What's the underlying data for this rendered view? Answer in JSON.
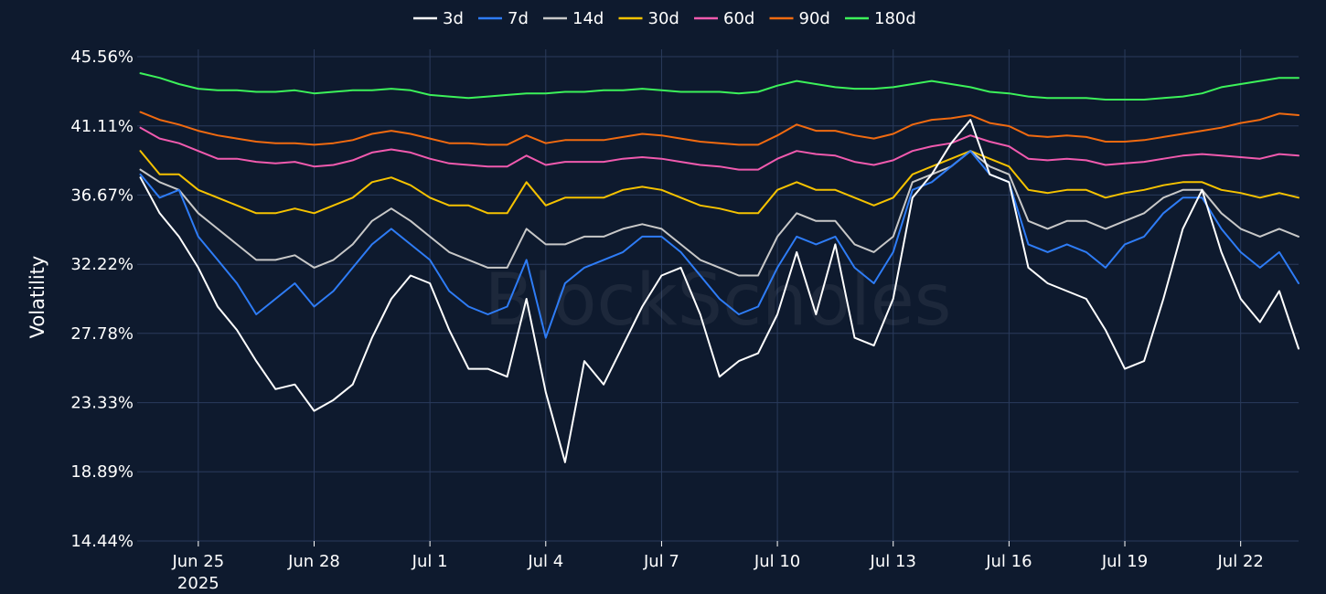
{
  "chart_data": {
    "type": "line",
    "watermark": "BlockScholes",
    "ylabel": "Volatility",
    "xlabel": "",
    "title": "",
    "grid": true,
    "legend_position": "top-center",
    "ylim": [
      14.44,
      45.56
    ],
    "y_ticks": [
      "45.56%",
      "41.11%",
      "36.67%",
      "32.22%",
      "27.78%",
      "23.33%",
      "18.89%",
      "14.44%"
    ],
    "y_tick_values": [
      45.56,
      41.11,
      36.67,
      32.22,
      27.78,
      23.33,
      18.89,
      14.44
    ],
    "x_ticks": [
      {
        "label": "Jun 25",
        "sublabel": "2025",
        "date": "2025-06-25"
      },
      {
        "label": "Jun 28",
        "sublabel": "",
        "date": "2025-06-28"
      },
      {
        "label": "Jul 1",
        "sublabel": "",
        "date": "2025-07-01"
      },
      {
        "label": "Jul 4",
        "sublabel": "",
        "date": "2025-07-04"
      },
      {
        "label": "Jul 7",
        "sublabel": "",
        "date": "2025-07-07"
      },
      {
        "label": "Jul 10",
        "sublabel": "",
        "date": "2025-07-10"
      },
      {
        "label": "Jul 13",
        "sublabel": "",
        "date": "2025-07-13"
      },
      {
        "label": "Jul 16",
        "sublabel": "",
        "date": "2025-07-16"
      },
      {
        "label": "Jul 19",
        "sublabel": "",
        "date": "2025-07-19"
      },
      {
        "label": "Jul 22",
        "sublabel": "",
        "date": "2025-07-22"
      }
    ],
    "xlim": [
      "2025-06-23T10:00",
      "2025-07-23T12:00"
    ],
    "x": [
      "2025-06-23T12:00",
      "2025-06-24T00:00",
      "2025-06-24T12:00",
      "2025-06-25T00:00",
      "2025-06-25T12:00",
      "2025-06-26T00:00",
      "2025-06-26T12:00",
      "2025-06-27T00:00",
      "2025-06-27T12:00",
      "2025-06-28T00:00",
      "2025-06-28T12:00",
      "2025-06-29T00:00",
      "2025-06-29T12:00",
      "2025-06-30T00:00",
      "2025-06-30T12:00",
      "2025-07-01T00:00",
      "2025-07-01T12:00",
      "2025-07-02T00:00",
      "2025-07-02T12:00",
      "2025-07-03T00:00",
      "2025-07-03T12:00",
      "2025-07-04T00:00",
      "2025-07-04T12:00",
      "2025-07-05T00:00",
      "2025-07-05T12:00",
      "2025-07-06T00:00",
      "2025-07-06T12:00",
      "2025-07-07T00:00",
      "2025-07-07T12:00",
      "2025-07-08T00:00",
      "2025-07-08T12:00",
      "2025-07-09T00:00",
      "2025-07-09T12:00",
      "2025-07-10T00:00",
      "2025-07-10T12:00",
      "2025-07-11T00:00",
      "2025-07-11T12:00",
      "2025-07-12T00:00",
      "2025-07-12T12:00",
      "2025-07-13T00:00",
      "2025-07-13T12:00",
      "2025-07-14T00:00",
      "2025-07-14T12:00",
      "2025-07-15T00:00",
      "2025-07-15T12:00",
      "2025-07-16T00:00",
      "2025-07-16T12:00",
      "2025-07-17T00:00",
      "2025-07-17T12:00",
      "2025-07-18T00:00",
      "2025-07-18T12:00",
      "2025-07-19T00:00",
      "2025-07-19T12:00",
      "2025-07-20T00:00",
      "2025-07-20T12:00",
      "2025-07-21T00:00",
      "2025-07-21T12:00",
      "2025-07-22T00:00",
      "2025-07-22T12:00",
      "2025-07-23T00:00",
      "2025-07-23T12:00"
    ],
    "series": [
      {
        "name": "3d",
        "color": "#ffffff",
        "values": [
          37.8,
          35.5,
          34.0,
          32.0,
          29.5,
          28.0,
          26.0,
          24.2,
          24.5,
          22.8,
          23.5,
          24.5,
          27.5,
          30.0,
          31.5,
          31.0,
          28.0,
          25.5,
          25.5,
          25.0,
          30.0,
          24.0,
          19.5,
          26.0,
          24.5,
          27.0,
          29.5,
          31.5,
          32.0,
          29.0,
          25.0,
          26.0,
          26.5,
          29.0,
          33.0,
          29.0,
          33.5,
          27.5,
          27.0,
          30.0,
          36.5,
          38.0,
          40.0,
          41.5,
          38.0,
          37.5,
          32.0,
          31.0,
          30.5,
          30.0,
          28.0,
          25.5,
          26.0,
          30.0,
          34.5,
          37.0,
          33.0,
          30.0,
          28.5,
          30.5,
          26.8
        ]
      },
      {
        "name": "7d",
        "color": "#2e7cf6",
        "values": [
          38.0,
          36.5,
          37.0,
          34.0,
          32.5,
          31.0,
          29.0,
          30.0,
          31.0,
          29.5,
          30.5,
          32.0,
          33.5,
          34.5,
          33.5,
          32.5,
          30.5,
          29.5,
          29.0,
          29.5,
          32.5,
          27.5,
          31.0,
          32.0,
          32.5,
          33.0,
          34.0,
          34.0,
          33.0,
          31.5,
          30.0,
          29.0,
          29.5,
          32.0,
          34.0,
          33.5,
          34.0,
          32.0,
          31.0,
          33.0,
          37.0,
          37.5,
          38.5,
          39.5,
          38.0,
          37.5,
          33.5,
          33.0,
          33.5,
          33.0,
          32.0,
          33.5,
          34.0,
          35.5,
          36.5,
          36.5,
          34.5,
          33.0,
          32.0,
          33.0,
          31.0
        ]
      },
      {
        "name": "14d",
        "color": "#c8c8c8",
        "values": [
          38.3,
          37.5,
          37.0,
          35.5,
          34.5,
          33.5,
          32.5,
          32.5,
          32.8,
          32.0,
          32.5,
          33.5,
          35.0,
          35.8,
          35.0,
          34.0,
          33.0,
          32.5,
          32.0,
          32.0,
          34.5,
          33.5,
          33.5,
          34.0,
          34.0,
          34.5,
          34.8,
          34.5,
          33.5,
          32.5,
          32.0,
          31.5,
          31.5,
          34.0,
          35.5,
          35.0,
          35.0,
          33.5,
          33.0,
          34.0,
          37.5,
          38.0,
          38.5,
          39.5,
          38.5,
          38.0,
          35.0,
          34.5,
          35.0,
          35.0,
          34.5,
          35.0,
          35.5,
          36.5,
          37.0,
          37.0,
          35.5,
          34.5,
          34.0,
          34.5,
          34.0
        ]
      },
      {
        "name": "30d",
        "color": "#f5c200",
        "values": [
          39.5,
          38.0,
          38.0,
          37.0,
          36.5,
          36.0,
          35.5,
          35.5,
          35.8,
          35.5,
          36.0,
          36.5,
          37.5,
          37.8,
          37.3,
          36.5,
          36.0,
          36.0,
          35.5,
          35.5,
          37.5,
          36.0,
          36.5,
          36.5,
          36.5,
          37.0,
          37.2,
          37.0,
          36.5,
          36.0,
          35.8,
          35.5,
          35.5,
          37.0,
          37.5,
          37.0,
          37.0,
          36.5,
          36.0,
          36.5,
          38.0,
          38.5,
          39.0,
          39.5,
          39.0,
          38.5,
          37.0,
          36.8,
          37.0,
          37.0,
          36.5,
          36.8,
          37.0,
          37.3,
          37.5,
          37.5,
          37.0,
          36.8,
          36.5,
          36.8,
          36.5
        ]
      },
      {
        "name": "60d",
        "color": "#f05aae",
        "values": [
          41.0,
          40.3,
          40.0,
          39.5,
          39.0,
          39.0,
          38.8,
          38.7,
          38.8,
          38.5,
          38.6,
          38.9,
          39.4,
          39.6,
          39.4,
          39.0,
          38.7,
          38.6,
          38.5,
          38.5,
          39.2,
          38.6,
          38.8,
          38.8,
          38.8,
          39.0,
          39.1,
          39.0,
          38.8,
          38.6,
          38.5,
          38.3,
          38.3,
          39.0,
          39.5,
          39.3,
          39.2,
          38.8,
          38.6,
          38.9,
          39.5,
          39.8,
          40.0,
          40.5,
          40.1,
          39.8,
          39.0,
          38.9,
          39.0,
          38.9,
          38.6,
          38.7,
          38.8,
          39.0,
          39.2,
          39.3,
          39.2,
          39.1,
          39.0,
          39.3,
          39.2
        ]
      },
      {
        "name": "90d",
        "color": "#f06a10",
        "values": [
          42.0,
          41.5,
          41.2,
          40.8,
          40.5,
          40.3,
          40.1,
          40.0,
          40.0,
          39.9,
          40.0,
          40.2,
          40.6,
          40.8,
          40.6,
          40.3,
          40.0,
          40.0,
          39.9,
          39.9,
          40.5,
          40.0,
          40.2,
          40.2,
          40.2,
          40.4,
          40.6,
          40.5,
          40.3,
          40.1,
          40.0,
          39.9,
          39.9,
          40.5,
          41.2,
          40.8,
          40.8,
          40.5,
          40.3,
          40.6,
          41.2,
          41.5,
          41.6,
          41.8,
          41.3,
          41.1,
          40.5,
          40.4,
          40.5,
          40.4,
          40.1,
          40.1,
          40.2,
          40.4,
          40.6,
          40.8,
          41.0,
          41.3,
          41.5,
          41.9,
          41.8
        ]
      },
      {
        "name": "180d",
        "color": "#3cf25a",
        "values": [
          44.5,
          44.2,
          43.8,
          43.5,
          43.4,
          43.4,
          43.3,
          43.3,
          43.4,
          43.2,
          43.3,
          43.4,
          43.4,
          43.5,
          43.4,
          43.1,
          43.0,
          42.9,
          43.0,
          43.1,
          43.2,
          43.2,
          43.3,
          43.3,
          43.4,
          43.4,
          43.5,
          43.4,
          43.3,
          43.3,
          43.3,
          43.2,
          43.3,
          43.7,
          44.0,
          43.8,
          43.6,
          43.5,
          43.5,
          43.6,
          43.8,
          44.0,
          43.8,
          43.6,
          43.3,
          43.2,
          43.0,
          42.9,
          42.9,
          42.9,
          42.8,
          42.8,
          42.8,
          42.9,
          43.0,
          43.2,
          43.6,
          43.8,
          44.0,
          44.2,
          44.2
        ]
      }
    ]
  }
}
